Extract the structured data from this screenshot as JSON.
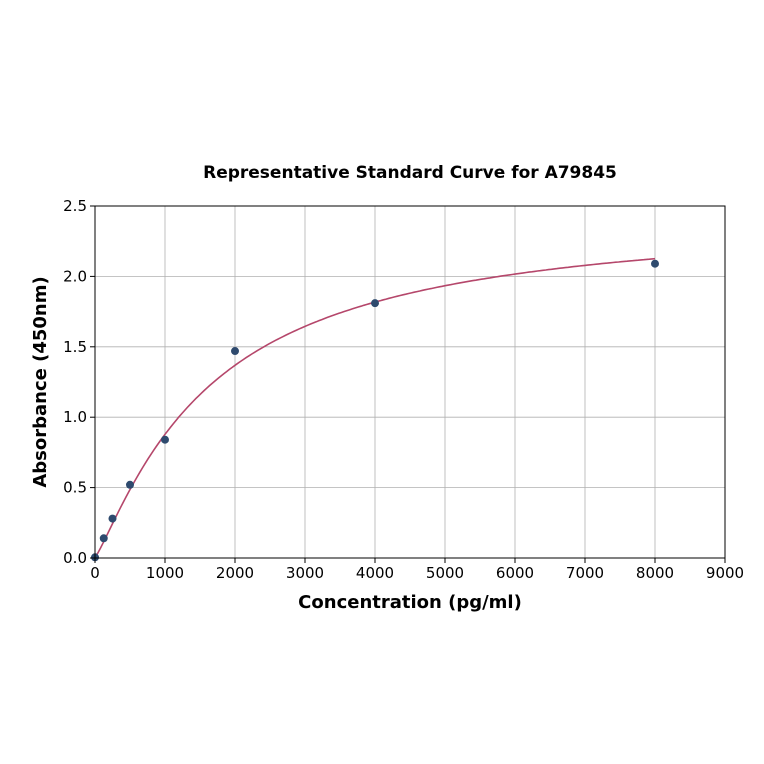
{
  "chart_data": {
    "type": "scatter",
    "title": "Representative Standard Curve for A79845",
    "xlabel": "Concentration (pg/ml)",
    "ylabel": "Absorbance (450nm)",
    "xlim": [
      0,
      9000
    ],
    "ylim": [
      0,
      2.5
    ],
    "xticks": [
      "0",
      "1000",
      "2000",
      "3000",
      "4000",
      "5000",
      "6000",
      "7000",
      "8000",
      "9000"
    ],
    "yticks": [
      "0.0",
      "0.5",
      "1.0",
      "1.5",
      "2.0",
      "2.5"
    ],
    "grid": true,
    "series": [
      {
        "x": [
          0,
          125,
          250,
          500,
          1000,
          2000,
          4000,
          8000
        ],
        "y": [
          0.005,
          0.14,
          0.28,
          0.52,
          0.84,
          1.47,
          1.81,
          2.09
        ],
        "marker_color": "#2e4a6e",
        "fit_curve_color": "#b5476b"
      }
    ]
  }
}
